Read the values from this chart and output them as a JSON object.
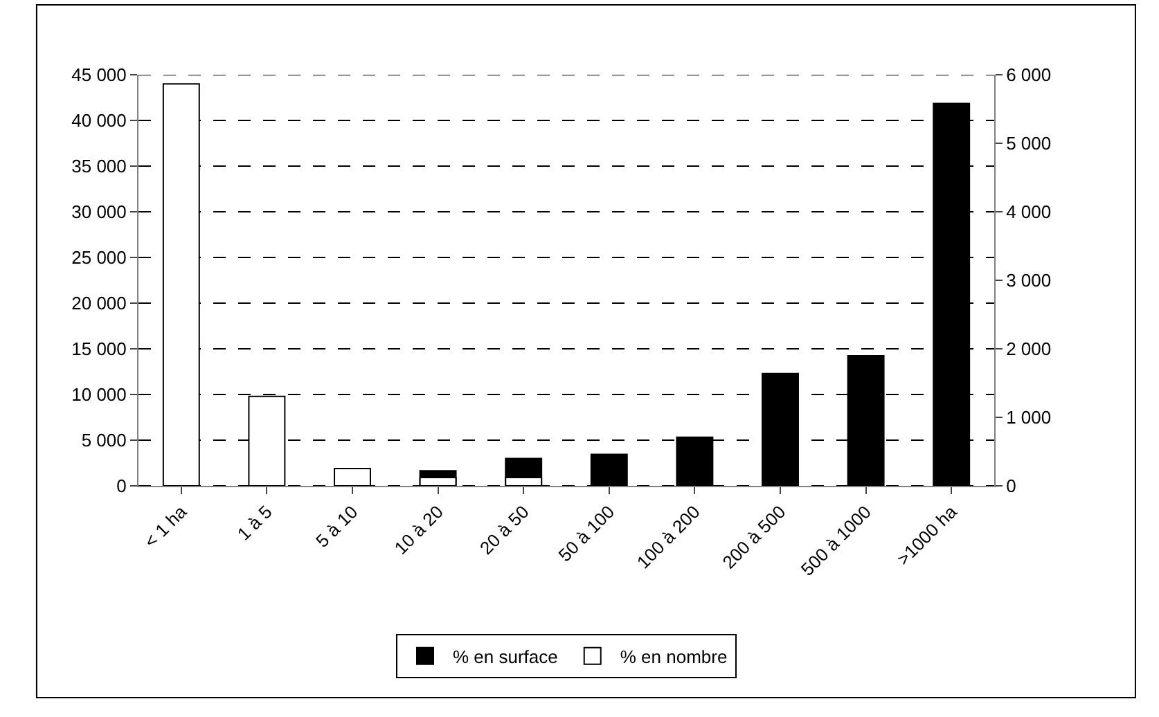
{
  "chart_data": {
    "type": "bar",
    "categories": [
      "< 1 ha",
      "1 à 5",
      "5 à 10",
      "10 à 20",
      "20 à 50",
      "50 à 100",
      "100 à 200",
      "200 à 500",
      "500 à 1000",
      ">1000 ha"
    ],
    "series": [
      {
        "name": "% en surface",
        "color": "#000000",
        "axis": "y2",
        "values": [
          null,
          null,
          null,
          220,
          400,
          460,
          710,
          1640,
          1900,
          5580
        ]
      },
      {
        "name": "% en nombre",
        "color": "#ffffff",
        "values": [
          44000,
          9800,
          1900,
          900,
          900,
          null,
          null,
          null,
          null,
          null
        ]
      }
    ],
    "ylim": [
      0,
      45000
    ],
    "yticks": [
      0,
      {
        "value": 5000,
        "label": "5 000"
      },
      {
        "value": 10000,
        "label": "10 000"
      },
      {
        "value": 15000,
        "label": "15 000"
      },
      {
        "value": 20000,
        "label": "20 000"
      },
      {
        "value": 25000,
        "label": "25 000"
      },
      {
        "value": 30000,
        "label": "30 000"
      },
      {
        "value": 35000,
        "label": "35 000"
      },
      {
        "value": 40000,
        "label": "40 000"
      },
      {
        "value": 45000,
        "label": "45 000"
      }
    ],
    "y2lim": [
      0,
      6000
    ],
    "y2ticks": [
      0,
      {
        "value": 1000,
        "label": "1 000"
      },
      {
        "value": 2000,
        "label": "2 000"
      },
      {
        "value": 3000,
        "label": "3 000"
      },
      {
        "value": 4000,
        "label": "4 000"
      },
      {
        "value": 5000,
        "label": "5 000"
      },
      {
        "value": 6000,
        "label": "6 000"
      }
    ],
    "grid": "y",
    "legend": "bottom"
  }
}
